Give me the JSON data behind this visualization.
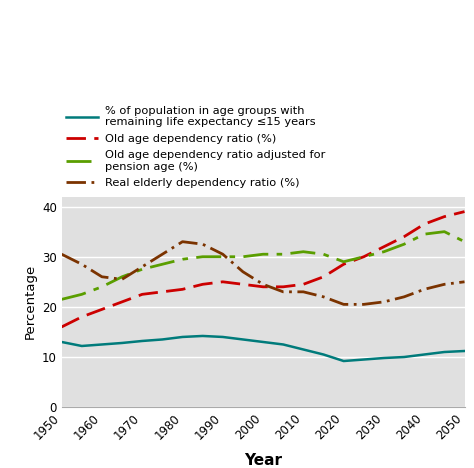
{
  "years": [
    1950,
    1955,
    1960,
    1965,
    1970,
    1975,
    1980,
    1985,
    1990,
    1995,
    2000,
    2005,
    2010,
    2015,
    2020,
    2025,
    2030,
    2035,
    2040,
    2045,
    2050
  ],
  "teal_line": [
    13.0,
    12.2,
    12.5,
    12.8,
    13.2,
    13.5,
    14.0,
    14.2,
    14.0,
    13.5,
    13.0,
    12.5,
    11.5,
    10.5,
    9.2,
    9.5,
    9.8,
    10.0,
    10.5,
    11.0,
    11.2
  ],
  "red_dashed": [
    16.0,
    18.0,
    19.5,
    21.0,
    22.5,
    23.0,
    23.5,
    24.5,
    25.0,
    24.5,
    24.0,
    24.0,
    24.5,
    26.0,
    28.5,
    30.0,
    32.0,
    34.0,
    36.5,
    38.0,
    39.0
  ],
  "green_dashed": [
    21.5,
    22.5,
    24.0,
    26.0,
    27.5,
    28.5,
    29.5,
    30.0,
    30.0,
    30.0,
    30.5,
    30.5,
    31.0,
    30.5,
    29.0,
    30.0,
    31.0,
    32.5,
    34.5,
    35.0,
    33.0
  ],
  "brown_dashdot": [
    30.5,
    28.5,
    26.0,
    25.5,
    28.0,
    30.5,
    33.0,
    32.5,
    30.5,
    27.0,
    24.5,
    23.0,
    23.0,
    22.0,
    20.5,
    20.5,
    21.0,
    22.0,
    23.5,
    24.5,
    25.0
  ],
  "teal_color": "#007b7b",
  "red_color": "#cc0000",
  "green_color": "#5a9e00",
  "brown_color": "#7b3300",
  "ylabel": "Percentage",
  "xlabel": "Year",
  "ylim": [
    0,
    42
  ],
  "xlim": [
    1950,
    2050
  ],
  "yticks": [
    0,
    10,
    20,
    30,
    40
  ],
  "xticks": [
    1950,
    1960,
    1970,
    1980,
    1990,
    2000,
    2010,
    2020,
    2030,
    2040,
    2050
  ],
  "legend_labels": [
    "% of population in age groups with\nremaining life expectancy ≤15 years",
    "Old age dependency ratio (%)",
    "Old age dependency ratio adjusted for\npension age (%)",
    "Real elderly dependency ratio (%)"
  ],
  "background_color": "#e0e0e0"
}
